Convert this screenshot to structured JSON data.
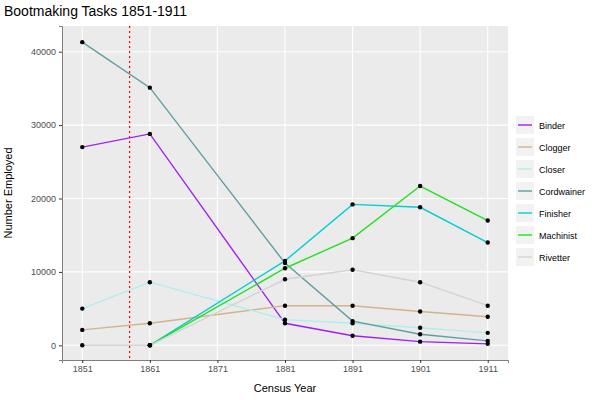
{
  "chart_data": {
    "type": "line",
    "title": "Bootmaking Tasks 1851-1911",
    "x_label": "Census Year",
    "y_label": "Number Employed",
    "x": [
      1851,
      1861,
      1881,
      1891,
      1901,
      1911
    ],
    "series": [
      {
        "name": "Binder",
        "color": "#a020f0",
        "values": [
          27000,
          28800,
          3000,
          1300,
          500,
          200
        ]
      },
      {
        "name": "Clogger",
        "color": "#d2b48c",
        "values": [
          2100,
          3000,
          5400,
          5400,
          4600,
          3900
        ]
      },
      {
        "name": "Closer",
        "color": "#afeeee",
        "values": [
          5000,
          8600,
          3500,
          3000,
          2400,
          1700
        ]
      },
      {
        "name": "Cordwainer",
        "color": "#5f9ea0",
        "values": [
          41300,
          35100,
          11200,
          3300,
          1500,
          600
        ]
      },
      {
        "name": "Finisher",
        "color": "#00ced1",
        "values": [
          null,
          0,
          11500,
          19200,
          18800,
          14000
        ]
      },
      {
        "name": "Machinist",
        "color": "#22e022",
        "values": [
          null,
          0,
          10500,
          14600,
          21700,
          17000
        ]
      },
      {
        "name": "Rivetter",
        "color": "#d3d3d3",
        "values": [
          0,
          0,
          9000,
          10300,
          8600,
          5400
        ]
      }
    ],
    "xlim": [
      1848,
      1914
    ],
    "xticks": [
      1851,
      1861,
      1871,
      1881,
      1891,
      1901,
      1911
    ],
    "ylim": [
      -2000,
      43500
    ],
    "yticks": [
      0,
      10000,
      20000,
      30000,
      40000
    ],
    "grid": true,
    "legend": "right",
    "marker": "circle",
    "reference_line": {
      "x": 1858,
      "color": "red",
      "line_style": "dotted"
    }
  }
}
